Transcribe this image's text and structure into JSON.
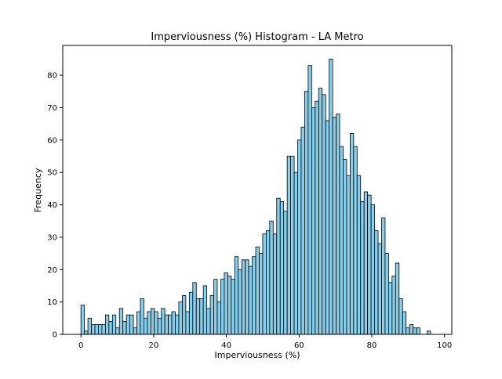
{
  "chart_data": {
    "type": "bar",
    "title": "Imperviousness (%) Histogram - LA Metro",
    "xlabel": "Imperviousness (%)",
    "ylabel": "Frequency",
    "xlim": [
      -5,
      102
    ],
    "ylim": [
      0,
      89.2
    ],
    "xticks": [
      0,
      20,
      40,
      60,
      80,
      100
    ],
    "yticks": [
      0,
      10,
      20,
      30,
      40,
      50,
      60,
      70,
      80
    ],
    "bin_width": 0.9615,
    "bar_color": "#87ceeb",
    "edge_color": "#000000",
    "grid": false,
    "legend": "none",
    "bins_start": [
      0,
      0.9615,
      1.923,
      2.8845,
      3.846,
      4.8075,
      5.769,
      6.7305,
      7.692,
      8.6535,
      9.615,
      10.5765,
      11.538,
      12.4995,
      13.461,
      14.4225,
      15.384,
      16.3455,
      17.307,
      18.2685,
      19.23,
      20.1915,
      21.153,
      22.1145,
      23.076,
      24.0375,
      24.999,
      25.9605,
      26.922,
      27.8835,
      28.845,
      29.8065,
      30.768,
      31.7295,
      32.691,
      33.6525,
      34.614,
      35.5755,
      36.537,
      37.4985,
      38.46,
      39.4215,
      40.383,
      41.3445,
      42.306,
      43.2675,
      44.229,
      45.1905,
      46.152,
      47.1135,
      48.075,
      49.0365,
      49.998,
      50.9595,
      51.921,
      52.8825,
      53.844,
      54.8055,
      55.767,
      56.7285,
      57.69,
      58.6515,
      59.613,
      60.5745,
      61.536,
      62.4975,
      63.459,
      64.4205,
      65.382,
      66.3435,
      67.305,
      68.2665,
      69.228,
      70.1895,
      71.151,
      72.1125,
      73.074,
      74.0355,
      74.997,
      75.9585,
      76.92,
      77.8815,
      78.843,
      79.8045,
      80.766,
      81.7275,
      82.689,
      83.6505,
      84.612,
      85.5735,
      86.535,
      87.4965,
      88.458,
      89.4195,
      90.381,
      91.3425,
      92.304,
      93.2655,
      94.227,
      95.1885,
      96.15
    ],
    "values": [
      9,
      1,
      5,
      3,
      3,
      3,
      3,
      6,
      4,
      6,
      2,
      8,
      4,
      6,
      6,
      2,
      7,
      11,
      5,
      7,
      8,
      7,
      5,
      8,
      6,
      6,
      7,
      6,
      10,
      12,
      7,
      13,
      16,
      11,
      11,
      15,
      8,
      12,
      17,
      10,
      17,
      19,
      18,
      17,
      24,
      20,
      23,
      23,
      21,
      24,
      27,
      25,
      31,
      32,
      35,
      31,
      42,
      41,
      38,
      55,
      55,
      50,
      60,
      64,
      75,
      83,
      70,
      72,
      76,
      74,
      66,
      85,
      67,
      68,
      58,
      54,
      49,
      62,
      58,
      49,
      41,
      44,
      43,
      40,
      32,
      28,
      36,
      25,
      16,
      18,
      22,
      11,
      7,
      2,
      3,
      2,
      2,
      0,
      0,
      1
    ]
  }
}
